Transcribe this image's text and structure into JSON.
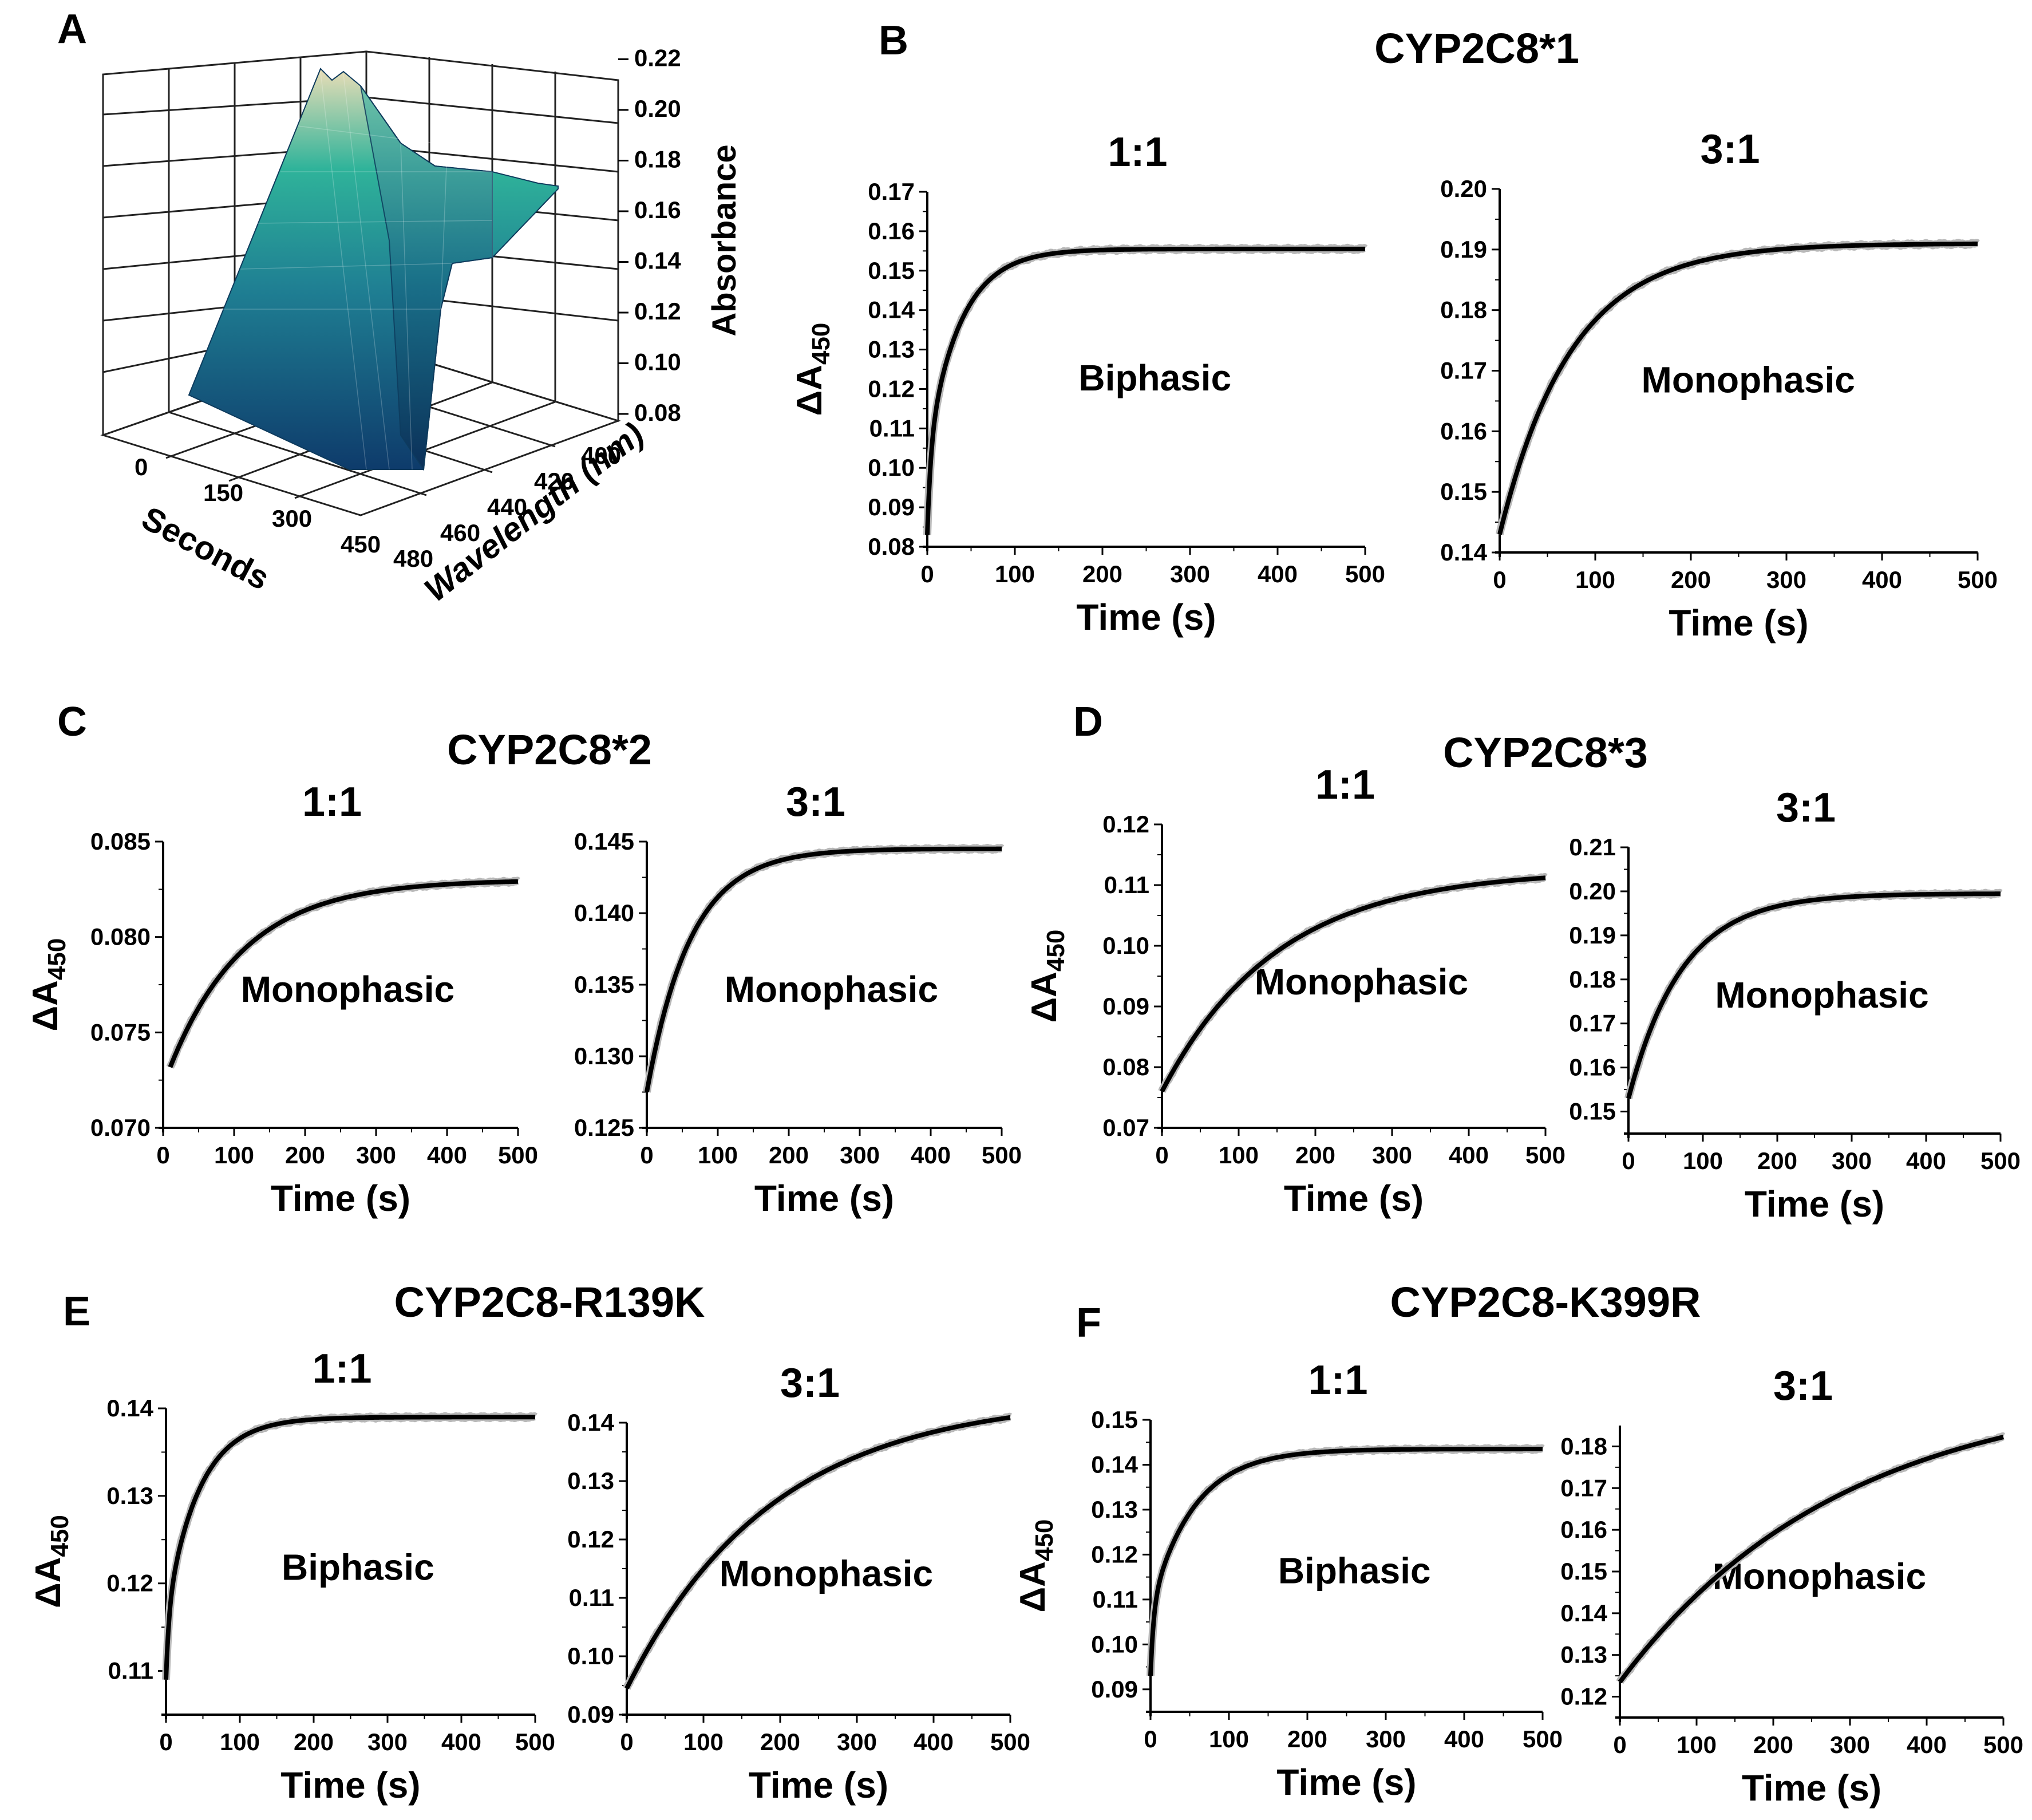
{
  "panel_letters": [
    "A",
    "B",
    "C",
    "D",
    "E",
    "F"
  ],
  "group_titles": {
    "B": "CYP2C8*1",
    "C": "CYP2C8*2",
    "D": "CYP2C8*3",
    "E": "CYP2C8-R139K",
    "F": "CYP2C8-K399R"
  },
  "panelA": {
    "zlabel": "Absorbance",
    "ylabel": "Wavelength (nm)",
    "xlabel": "Seconds",
    "z_ticks": [
      "0.08",
      "0.10",
      "0.12",
      "0.14",
      "0.16",
      "0.18",
      "0.20",
      "0.22"
    ],
    "wavelength_ticks": [
      "400",
      "420",
      "440",
      "460",
      "480"
    ],
    "seconds_ticks": [
      "0",
      "150",
      "300",
      "450"
    ],
    "colors": {
      "low": "#0e3b6b",
      "mid": "#1f9e93",
      "high": "#e9ddb6"
    }
  },
  "chart_data": [
    {
      "id": "B1",
      "type": "line",
      "group": "CYP2C8*1",
      "title": "1:1",
      "annotation": "Biphasic",
      "xlabel": "Time (s)",
      "ylabel_main": "ΔA",
      "ylabel_sub": "450",
      "xlim": [
        0,
        500
      ],
      "ylim": [
        0.08,
        0.17
      ],
      "x_ticks": [
        0,
        100,
        200,
        300,
        400,
        500
      ],
      "y_ticks": [
        "0.08",
        "0.09",
        "0.10",
        "0.11",
        "0.12",
        "0.13",
        "0.14",
        "0.15",
        "0.16",
        "0.17"
      ],
      "fit": {
        "start": 0.083,
        "end": 0.1555,
        "fast_fraction": 0.3,
        "tau_fast": 4,
        "tau_slow": 38
      },
      "series": [
        {
          "values_x": [
            0,
            5,
            10,
            25,
            50,
            75,
            100,
            150,
            200,
            300,
            400,
            500
          ],
          "values_y": [
            0.083,
            0.108,
            0.114,
            0.125,
            0.137,
            0.145,
            0.15,
            0.154,
            0.155,
            0.1555,
            0.1555,
            0.1555
          ]
        }
      ]
    },
    {
      "id": "B2",
      "type": "line",
      "group": "CYP2C8*1",
      "title": "3:1",
      "annotation": "Monophasic",
      "xlabel": "Time (s)",
      "ylabel_main": "",
      "ylabel_sub": "",
      "xlim": [
        0,
        500
      ],
      "ylim": [
        0.14,
        0.2
      ],
      "x_ticks": [
        0,
        100,
        200,
        300,
        400,
        500
      ],
      "y_ticks": [
        "0.14",
        "0.15",
        "0.16",
        "0.17",
        "0.18",
        "0.19",
        "0.20"
      ],
      "fit": {
        "start": 0.143,
        "end": 0.191,
        "fast_fraction": 0,
        "tau_fast": 1,
        "tau_slow": 75
      },
      "series": [
        {
          "values_x": [
            0,
            50,
            100,
            150,
            200,
            300,
            400,
            500
          ],
          "values_y": [
            0.143,
            0.166,
            0.178,
            0.185,
            0.188,
            0.19,
            0.191,
            0.191
          ]
        }
      ]
    },
    {
      "id": "C1",
      "type": "line",
      "group": "CYP2C8*2",
      "title": "1:1",
      "annotation": "Monophasic",
      "xlabel": "Time (s)",
      "ylabel_main": "ΔA",
      "ylabel_sub": "450",
      "xlim": [
        0,
        500
      ],
      "ylim": [
        0.07,
        0.085
      ],
      "x_start": 10,
      "x_ticks": [
        0,
        100,
        200,
        300,
        400,
        500
      ],
      "y_ticks": [
        "0.070",
        "0.075",
        "0.080",
        "0.085"
      ],
      "fit": {
        "start": 0.0722,
        "end": 0.083,
        "fast_fraction": 0,
        "tau_fast": 1,
        "tau_slow": 105
      },
      "series": [
        {
          "values_x": [
            10,
            50,
            100,
            150,
            200,
            300,
            400,
            490
          ],
          "values_y": [
            0.0722,
            0.0755,
            0.0783,
            0.08,
            0.0811,
            0.0822,
            0.0826,
            0.0828
          ]
        }
      ]
    },
    {
      "id": "C2",
      "type": "line",
      "group": "CYP2C8*2",
      "title": "3:1",
      "annotation": "Monophasic",
      "xlabel": "Time (s)",
      "ylabel_main": "",
      "ylabel_sub": "",
      "xlim": [
        0,
        500
      ],
      "ylim": [
        0.125,
        0.145
      ],
      "x_ticks": [
        0,
        100,
        200,
        300,
        400,
        500
      ],
      "y_ticks": [
        "0.125",
        "0.130",
        "0.135",
        "0.140",
        "0.145"
      ],
      "fit": {
        "start": 0.1275,
        "end": 0.1445,
        "fast_fraction": 0,
        "tau_fast": 1,
        "tau_slow": 62
      },
      "series": [
        {
          "values_x": [
            0,
            50,
            100,
            150,
            200,
            300,
            400,
            500
          ],
          "values_y": [
            0.1275,
            0.136,
            0.14,
            0.1425,
            0.1437,
            0.1443,
            0.1445,
            0.1445
          ]
        }
      ]
    },
    {
      "id": "D1",
      "type": "line",
      "group": "CYP2C8*3",
      "title": "1:1",
      "annotation": "Monophasic",
      "xlabel": "Time (s)",
      "ylabel_main": "ΔA",
      "ylabel_sub": "450",
      "xlim": [
        0,
        500
      ],
      "ylim": [
        0.07,
        0.12
      ],
      "x_ticks": [
        0,
        100,
        200,
        300,
        400,
        500
      ],
      "y_ticks": [
        "0.07",
        "0.08",
        "0.09",
        "0.10",
        "0.11",
        "0.12"
      ],
      "fit": {
        "start": 0.076,
        "end": 0.1125,
        "fast_fraction": 0,
        "tau_fast": 1,
        "tau_slow": 150
      },
      "series": [
        {
          "values_x": [
            0,
            50,
            100,
            150,
            200,
            300,
            400,
            500
          ],
          "values_y": [
            0.076,
            0.087,
            0.095,
            0.1,
            0.104,
            0.108,
            0.11,
            0.111
          ]
        }
      ]
    },
    {
      "id": "D2",
      "type": "line",
      "group": "CYP2C8*3",
      "title": "3:1",
      "annotation": "Monophasic",
      "xlabel": "Time (s)",
      "ylabel_main": "",
      "ylabel_sub": "",
      "xlim": [
        0,
        500
      ],
      "ylim": [
        0.145,
        0.21
      ],
      "x_ticks": [
        0,
        100,
        200,
        300,
        400,
        500
      ],
      "y_ticks": [
        "0.15",
        "0.16",
        "0.17",
        "0.18",
        "0.19",
        "0.20",
        "0.21"
      ],
      "fit": {
        "start": 0.153,
        "end": 0.1995,
        "fast_fraction": 0,
        "tau_fast": 1,
        "tau_slow": 72
      },
      "series": [
        {
          "values_x": [
            0,
            50,
            100,
            150,
            200,
            300,
            400,
            500
          ],
          "values_y": [
            0.153,
            0.174,
            0.186,
            0.193,
            0.196,
            0.199,
            0.1995,
            0.1995
          ]
        }
      ]
    },
    {
      "id": "E1",
      "type": "line",
      "group": "CYP2C8-R139K",
      "title": "1:1",
      "annotation": "Biphasic",
      "xlabel": "Time (s)",
      "ylabel_main": "ΔA",
      "ylabel_sub": "450",
      "xlim": [
        0,
        500
      ],
      "ylim": [
        0.105,
        0.14
      ],
      "x_ticks": [
        0,
        100,
        200,
        300,
        400,
        500
      ],
      "y_ticks": [
        "0.11",
        "0.12",
        "0.13",
        "0.14"
      ],
      "fit": {
        "start": 0.109,
        "end": 0.139,
        "fast_fraction": 0.25,
        "tau_fast": 4,
        "tau_slow": 45
      },
      "series": [
        {
          "values_x": [
            0,
            5,
            25,
            50,
            100,
            150,
            200,
            300,
            400,
            500
          ],
          "values_y": [
            0.109,
            0.116,
            0.121,
            0.127,
            0.134,
            0.137,
            0.138,
            0.139,
            0.139,
            0.139
          ]
        }
      ]
    },
    {
      "id": "E2",
      "type": "line",
      "group": "CYP2C8-R139K",
      "title": "3:1",
      "annotation": "Monophasic",
      "xlabel": "Time (s)",
      "ylabel_main": "",
      "ylabel_sub": "",
      "xlim": [
        0,
        500
      ],
      "ylim": [
        0.09,
        0.14
      ],
      "x_ticks": [
        0,
        100,
        200,
        300,
        400,
        500
      ],
      "y_ticks": [
        "0.09",
        "0.10",
        "0.11",
        "0.12",
        "0.13",
        "0.14"
      ],
      "fit": {
        "start": 0.0945,
        "end": 0.1445,
        "fast_fraction": 0,
        "tau_fast": 1,
        "tau_slow": 190
      },
      "series": [
        {
          "values_x": [
            0,
            50,
            100,
            200,
            300,
            400,
            500
          ],
          "values_y": [
            0.0945,
            0.106,
            0.115,
            0.127,
            0.133,
            0.136,
            0.1385
          ]
        }
      ]
    },
    {
      "id": "F1",
      "type": "line",
      "group": "CYP2C8-K399R",
      "title": "1:1",
      "annotation": "Biphasic",
      "xlabel": "Time (s)",
      "ylabel_main": "ΔA",
      "ylabel_sub": "450",
      "xlim": [
        0,
        500
      ],
      "ylim": [
        0.085,
        0.15
      ],
      "x_ticks": [
        0,
        100,
        200,
        300,
        400,
        500
      ],
      "y_ticks": [
        "0.09",
        "0.10",
        "0.11",
        "0.12",
        "0.13",
        "0.14",
        "0.15"
      ],
      "fit": {
        "start": 0.093,
        "end": 0.1435,
        "fast_fraction": 0.3,
        "tau_fast": 4,
        "tau_slow": 55
      },
      "series": [
        {
          "values_x": [
            0,
            5,
            25,
            50,
            100,
            150,
            200,
            300,
            400,
            500
          ],
          "values_y": [
            0.093,
            0.106,
            0.115,
            0.124,
            0.135,
            0.14,
            0.142,
            0.1435,
            0.1435,
            0.1435
          ]
        }
      ]
    },
    {
      "id": "F2",
      "type": "line",
      "group": "CYP2C8-K399R",
      "title": "3:1",
      "annotation": "Monophasic",
      "xlabel": "Time (s)",
      "ylabel_main": "",
      "ylabel_sub": "",
      "xlim": [
        0,
        500
      ],
      "ylim": [
        0.115,
        0.185
      ],
      "x_ticks": [
        0,
        100,
        200,
        300,
        400,
        500
      ],
      "y_ticks": [
        "0.12",
        "0.13",
        "0.14",
        "0.15",
        "0.16",
        "0.17",
        "0.18"
      ],
      "fit": {
        "start": 0.1235,
        "end": 0.195,
        "fast_fraction": 0,
        "tau_fast": 1,
        "tau_slow": 290
      },
      "series": [
        {
          "values_x": [
            0,
            100,
            200,
            300,
            400,
            500
          ],
          "values_y": [
            0.1235,
            0.145,
            0.16,
            0.169,
            0.175,
            0.179
          ]
        }
      ]
    }
  ]
}
